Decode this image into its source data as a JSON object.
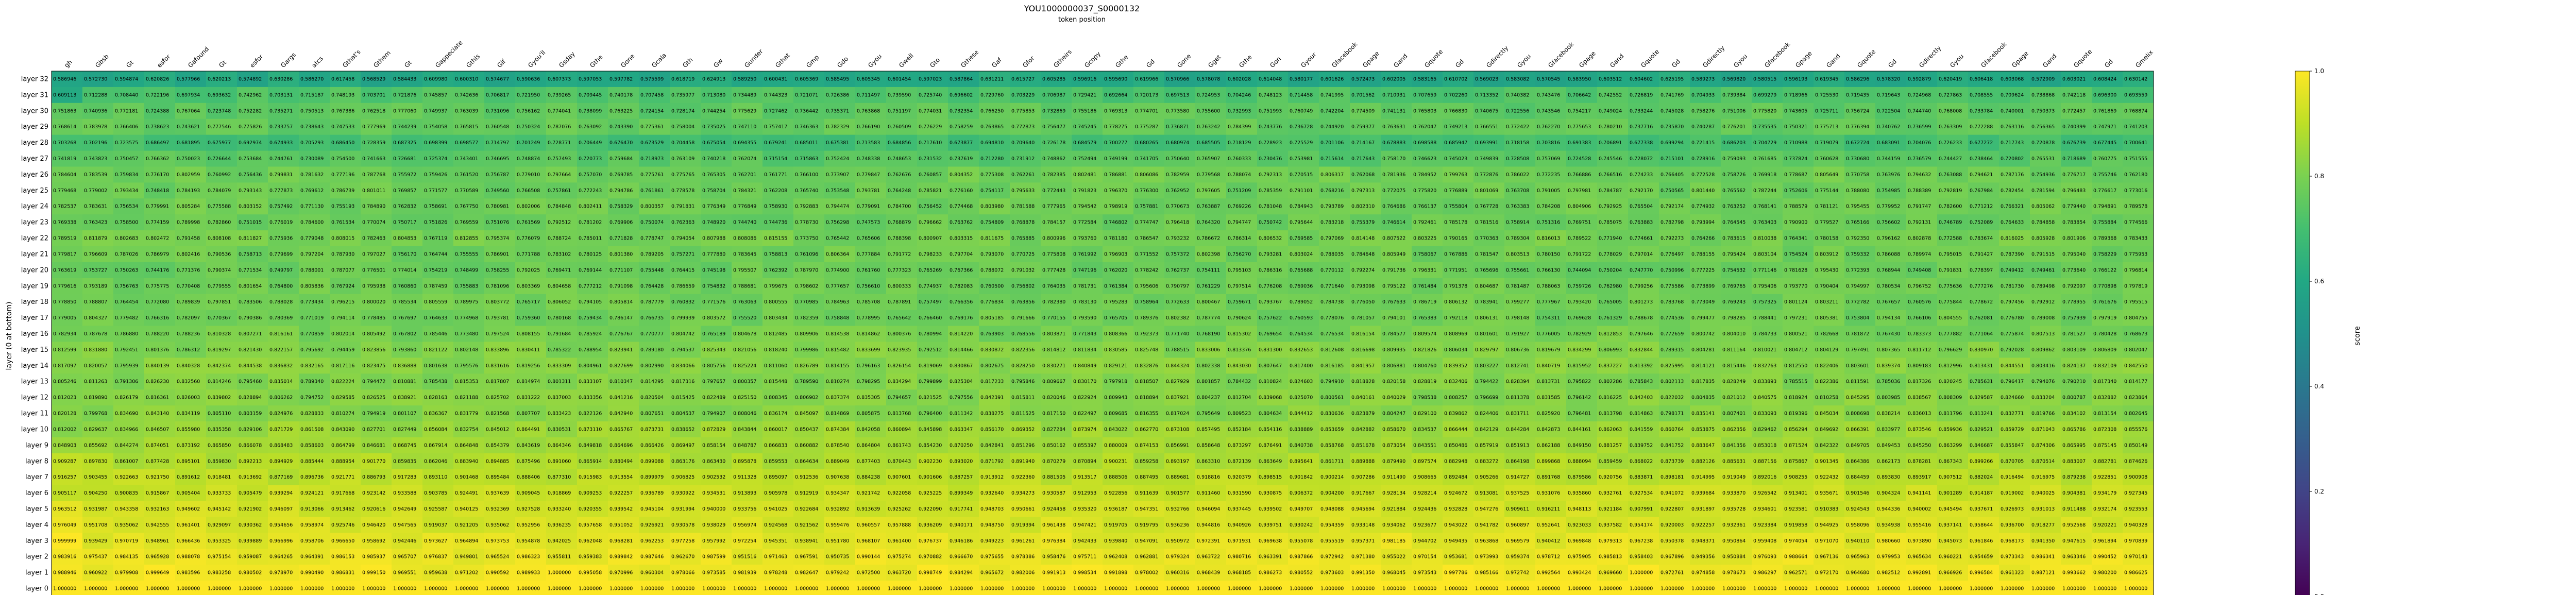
{
  "chart_data": {
    "type": "heatmap",
    "title": "YOU1000000037_S0000132",
    "subtitle": "token position",
    "ylabel": "layer (0 at bottom)",
    "colorbar_label": "score",
    "colorbar_ticks": [
      0.0,
      0.2,
      0.4,
      0.6,
      0.8,
      1.0
    ],
    "colorbar_ticklabels": [
      "0.0",
      "0.2",
      "0.4",
      "0.6",
      "0.8",
      "1.0"
    ],
    "colormap": "viridis",
    "vmin": 0.0,
    "vmax": 1.0,
    "grid": false,
    "legend": "colorbar-right",
    "n_cols": 68,
    "tokens": [
      "gh",
      "Gbsb",
      "Gt",
      "esfor",
      "Gafound",
      "Gt",
      "esfor",
      "Gargs",
      "atcs",
      "Gthat's",
      "Gthem",
      "Gt",
      "Gappeciate",
      "Gthis",
      "Gif",
      "Gyou'll",
      "Gsday",
      "Gthe",
      "Gone",
      "Gcala",
      "Gth",
      "Gw",
      "Gunder",
      "Gthat",
      "Gmp",
      "Gdo",
      "Gyou",
      "Gwell",
      "Gto",
      "Gthese",
      "Gaf",
      "Gfor",
      "Gtheirs",
      "Gcopy",
      "Gthe",
      "Gd",
      "Gone",
      "Gget",
      "Gthe",
      "Gon",
      "Gyour",
      "Gfacebook",
      "Gpage",
      "Gand",
      "Gquote",
      "Gd",
      "Gdirectly",
      "Gyou",
      "Gfacebook",
      "Gpage",
      "Gand",
      "Gquote",
      "Gd",
      "Gdirectly",
      "Gyou",
      "Gfacebook",
      "Gpage",
      "Gand",
      "Gquote",
      "Gd",
      "Gdirectly",
      "Gyou",
      "Gfacebook",
      "Gpage",
      "Gand",
      "Gquote",
      "Gd",
      "Gmelix"
    ],
    "layers": [
      "layer 32",
      "layer 31",
      "layer 30",
      "layer 29",
      "layer 28",
      "layer 27",
      "layer 26",
      "layer 25",
      "layer 24",
      "layer 23",
      "layer 22",
      "layer 21",
      "layer 20",
      "layer 19",
      "layer 18",
      "layer 17",
      "layer 16",
      "layer 15",
      "layer 14",
      "layer 13",
      "layer 12",
      "layer 11",
      "layer 10",
      "layer 9",
      "layer 8",
      "layer 7",
      "layer 6",
      "layer 5",
      "layer 4",
      "layer 3",
      "layer 2",
      "layer 1",
      "layer 0"
    ],
    "first_column_values": [
      "0.586946",
      "0.609113",
      "0.751863",
      "0.768614",
      "0.703268",
      "0.741819",
      "0.784604",
      "0.779468",
      "0.782537",
      "0.769338",
      "0.789519",
      "0.779817",
      "0.763619",
      "0.779616",
      "0.778850",
      "0.779005",
      "0.782934",
      "0.812599",
      "0.817097",
      "0.805246",
      "0.812023",
      "0.820128",
      "0.812002",
      "0.848903",
      "0.909287",
      "0.916257",
      "0.905117",
      "0.963512",
      "0.976049",
      "0.999999",
      "0.983916",
      "0.988946",
      "1.000000"
    ],
    "row_base": [
      0.6,
      0.72,
      0.75,
      0.76,
      0.7,
      0.74,
      0.78,
      0.775,
      0.78,
      0.77,
      0.79,
      0.78,
      0.77,
      0.78,
      0.78,
      0.78,
      0.79,
      0.81,
      0.82,
      0.81,
      0.82,
      0.82,
      0.85,
      0.86,
      0.88,
      0.9,
      0.92,
      0.93,
      0.94,
      0.96,
      0.97,
      0.98,
      1.0
    ],
    "note_values": "Cell values are shown in each cell with six decimals; rows are layers 32 (top) to 0 (bottom)."
  }
}
